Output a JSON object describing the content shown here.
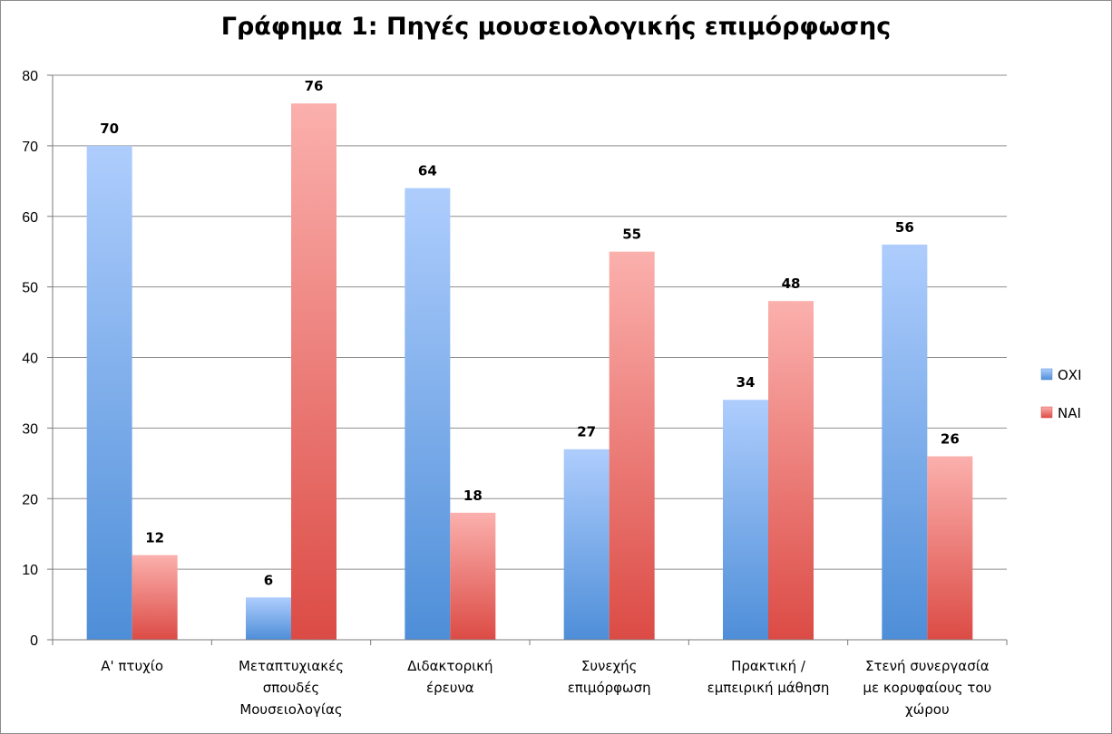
{
  "chart_data": {
    "type": "bar",
    "title": "Γράφημα 1: Πηγές μουσειολογικής επιμόρφωσης",
    "categories": [
      [
        "Α' πτυχίο"
      ],
      [
        "Μεταπτυχιακές",
        "σπουδές",
        "Μουσειολογίας"
      ],
      [
        "Διδακτορική",
        "έρευνα"
      ],
      [
        "Συνεχής",
        "επιμόρφωση"
      ],
      [
        "Πρακτική /",
        "εμπειρική μάθηση"
      ],
      [
        "Στενή συνεργασία",
        "με κορυφαίους του",
        "χώρου"
      ]
    ],
    "series": [
      {
        "name": "ΟΧΙ",
        "values": [
          70,
          6,
          64,
          27,
          34,
          56
        ],
        "color": "#5b95d9"
      },
      {
        "name": "ΝΑΙ",
        "values": [
          12,
          76,
          18,
          55,
          48,
          26
        ],
        "color": "#e05a52"
      }
    ],
    "ylim": [
      0,
      80
    ],
    "yticks": [
      0,
      10,
      20,
      30,
      40,
      50,
      60,
      70,
      80
    ],
    "grid": true,
    "legend": "right",
    "data_labels": true
  }
}
